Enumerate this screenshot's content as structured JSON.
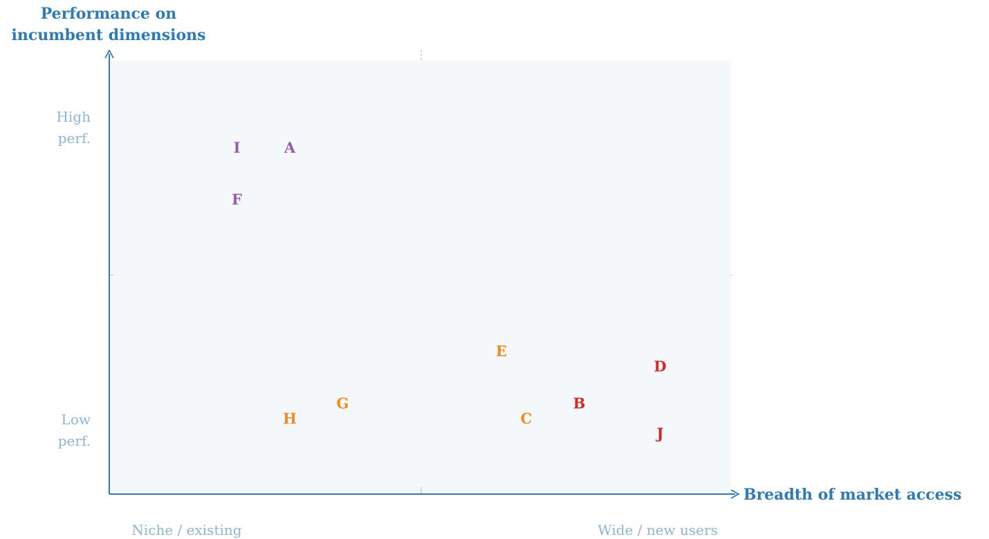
{
  "chart_data": {
    "type": "scatter",
    "title": "",
    "ylabel_lines": [
      "Performance on",
      "incumbent dimensions"
    ],
    "xlabel": "Breadth of market access",
    "x_ticks": {
      "low": "Niche / existing",
      "high": "Wide / new users"
    },
    "y_ticks": {
      "high": [
        "High",
        "perf."
      ],
      "low": [
        "Low",
        "perf."
      ]
    },
    "xlim": [
      0,
      10
    ],
    "ylim": [
      0,
      10
    ],
    "grid": false,
    "colors": {
      "axis": "#2b7bb9",
      "background": "#f5f8fb",
      "purple": "#9b59b6",
      "orange": "#f28a1e",
      "red": "#d62728"
    },
    "points": [
      {
        "label": "A",
        "x": 2.9,
        "y": 8.0,
        "color": "purple"
      },
      {
        "label": "I",
        "x": 2.05,
        "y": 8.0,
        "color": "purple"
      },
      {
        "label": "F",
        "x": 2.05,
        "y": 6.8,
        "color": "purple"
      },
      {
        "label": "E",
        "x": 6.3,
        "y": 3.3,
        "color": "orange"
      },
      {
        "label": "G",
        "x": 3.75,
        "y": 2.1,
        "color": "orange"
      },
      {
        "label": "H",
        "x": 2.9,
        "y": 1.75,
        "color": "orange"
      },
      {
        "label": "C",
        "x": 6.7,
        "y": 1.75,
        "color": "orange"
      },
      {
        "label": "D",
        "x": 8.85,
        "y": 2.95,
        "color": "red"
      },
      {
        "label": "B",
        "x": 7.55,
        "y": 2.1,
        "color": "red"
      },
      {
        "label": "J",
        "x": 8.85,
        "y": 1.4,
        "color": "red"
      }
    ]
  }
}
